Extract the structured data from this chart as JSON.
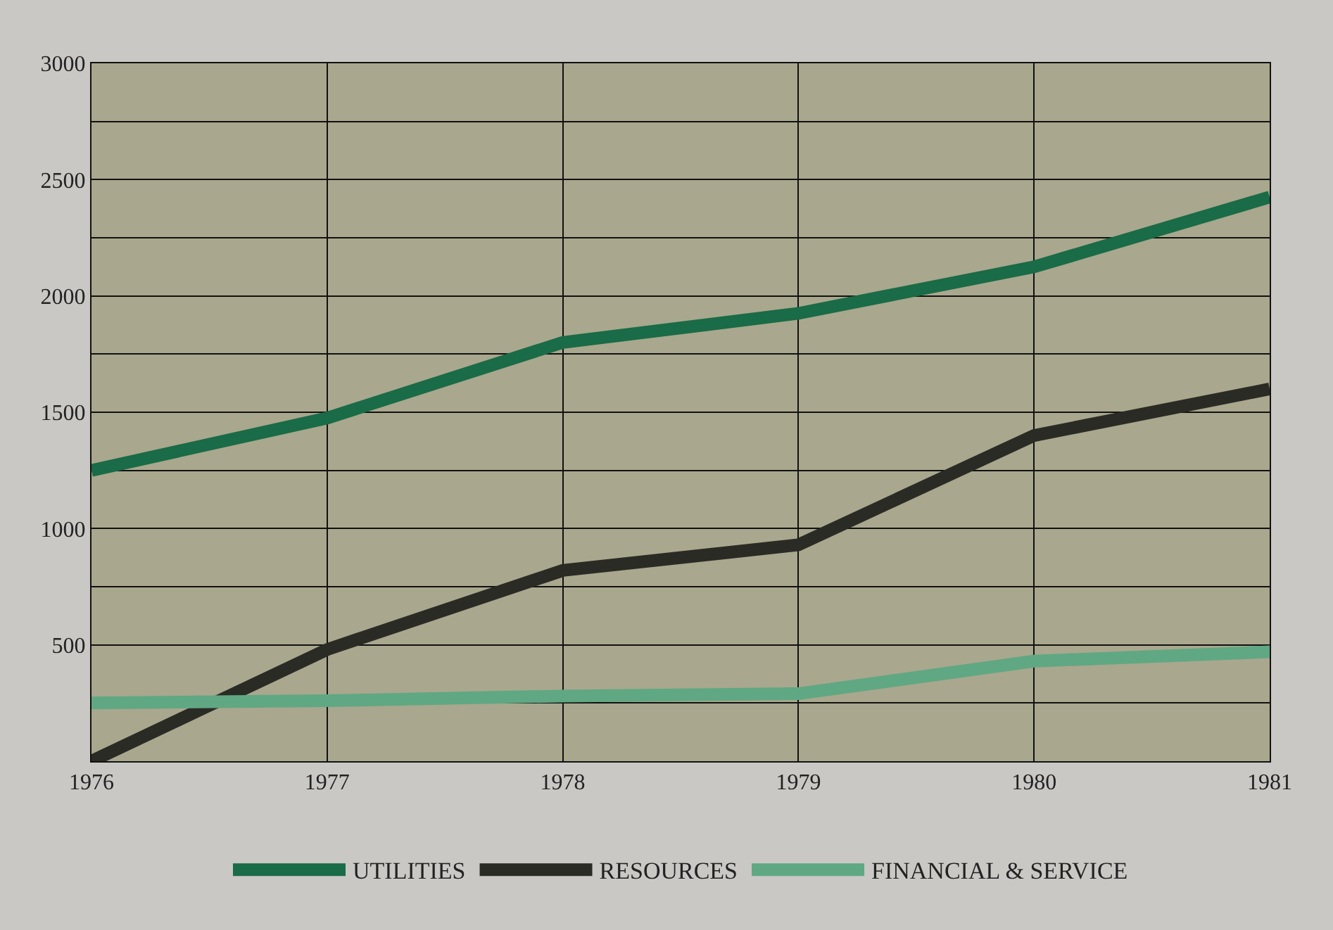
{
  "chart_data": {
    "type": "line",
    "x": [
      1976,
      1977,
      1978,
      1979,
      1980,
      1981
    ],
    "series": [
      {
        "name": "UTILITIES",
        "color": "#1a6b47",
        "values": [
          1250,
          1475,
          1800,
          1925,
          2125,
          2425
        ]
      },
      {
        "name": "RESOURCES",
        "color": "#2b2b26",
        "values": [
          0,
          480,
          820,
          930,
          1400,
          1600
        ]
      },
      {
        "name": "FINANCIAL & SERVICE",
        "color": "#5fa883",
        "values": [
          250,
          260,
          280,
          290,
          430,
          470
        ]
      }
    ],
    "xlim": [
      1976,
      1981
    ],
    "xticks": [
      1976,
      1977,
      1978,
      1979,
      1980,
      1981
    ],
    "ylim": [
      0,
      3000
    ],
    "yticks": [
      {
        "value": 0,
        "label": null
      },
      {
        "value": 250,
        "label": null
      },
      500,
      {
        "value": 750,
        "label": null
      },
      1000,
      {
        "value": 1250,
        "label": null
      },
      1500,
      {
        "value": 1750,
        "label": null
      },
      2000,
      {
        "value": 2250,
        "label": null
      },
      2500,
      {
        "value": 2750,
        "label": null
      },
      3000
    ],
    "grid": true,
    "legend": "bottom",
    "marker": "none",
    "line_style": "solid"
  }
}
